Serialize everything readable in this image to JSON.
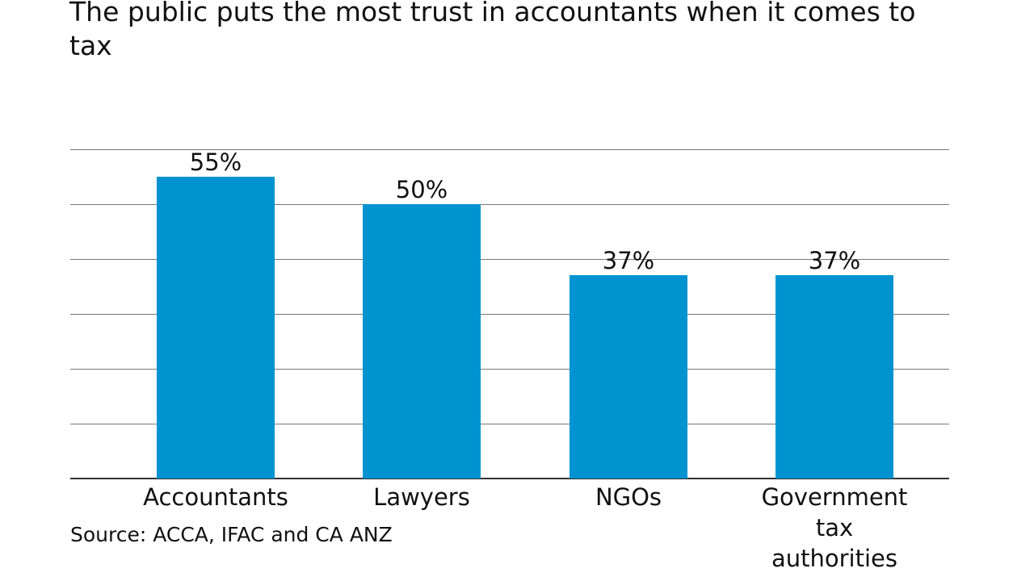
{
  "title": "The public puts the most trust in accountants when it comes to tax",
  "source": "Source: ACCA, IFAC and CA ANZ",
  "colors": {
    "bar": "#0093d0",
    "grid": "#777777"
  },
  "chart_data": {
    "type": "bar",
    "title": "The public puts the most trust in accountants when it comes to tax",
    "categories": [
      "Accountants",
      "Lawyers",
      "NGOs",
      "Government tax authorities"
    ],
    "values": [
      55,
      50,
      37,
      37
    ],
    "value_labels": [
      "55%",
      "50%",
      "37%",
      "37%"
    ],
    "xlabel": "",
    "ylabel": "",
    "ylim": [
      0,
      60
    ],
    "grid": true,
    "gridlines": [
      0,
      10,
      20,
      30,
      40,
      50,
      60
    ],
    "legend": null,
    "source": "Source: ACCA, IFAC and CA ANZ"
  }
}
